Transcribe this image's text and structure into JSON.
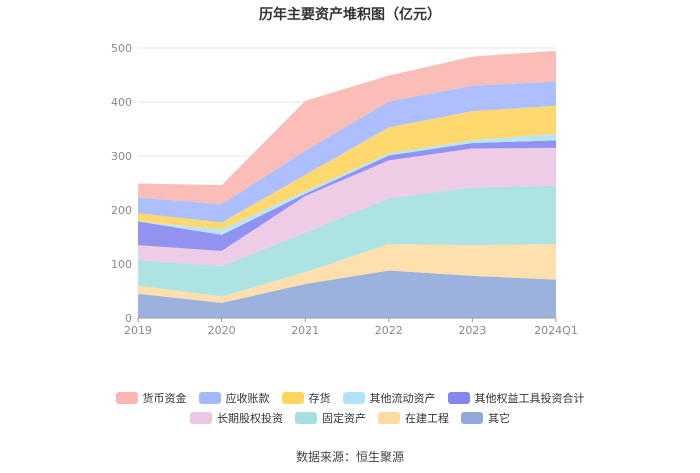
{
  "title": "历年主要资产堆积图（亿元）",
  "source": "数据来源：恒生聚源",
  "chart_data": {
    "type": "area",
    "stacked": true,
    "categories": [
      "2019",
      "2020",
      "2021",
      "2022",
      "2023",
      "2024Q1"
    ],
    "ylim": [
      0,
      500
    ],
    "yticks": [
      0,
      100,
      200,
      300,
      400,
      500
    ],
    "grid": true,
    "legend_position": "bottom",
    "series": [
      {
        "name": "其它",
        "color": "#8faad9",
        "values": [
          45,
          28,
          63,
          88,
          78,
          71
        ]
      },
      {
        "name": "在建工程",
        "color": "#fedba5",
        "values": [
          15,
          12,
          22,
          49,
          57,
          66
        ]
      },
      {
        "name": "固定资产",
        "color": "#a4e0df",
        "values": [
          47,
          56,
          73,
          85,
          107,
          108
        ]
      },
      {
        "name": "长期股权投资",
        "color": "#ecc6e2",
        "values": [
          28,
          28,
          68,
          70,
          72,
          70
        ]
      },
      {
        "name": "其他权益工具投资合计",
        "color": "#8686ee",
        "values": [
          44,
          30,
          4,
          9,
          10,
          14
        ]
      },
      {
        "name": "其他流动资产",
        "color": "#aee3fa",
        "values": [
          0,
          10,
          5,
          4,
          5,
          12
        ]
      },
      {
        "name": "存货",
        "color": "#ffd55e",
        "values": [
          15,
          13,
          30,
          48,
          54,
          52
        ]
      },
      {
        "name": "应收账款",
        "color": "#a4b8ff",
        "values": [
          29,
          34,
          45,
          48,
          47,
          45
        ]
      },
      {
        "name": "货币资金",
        "color": "#fab6b0",
        "values": [
          26,
          35,
          92,
          48,
          54,
          57
        ]
      }
    ]
  }
}
